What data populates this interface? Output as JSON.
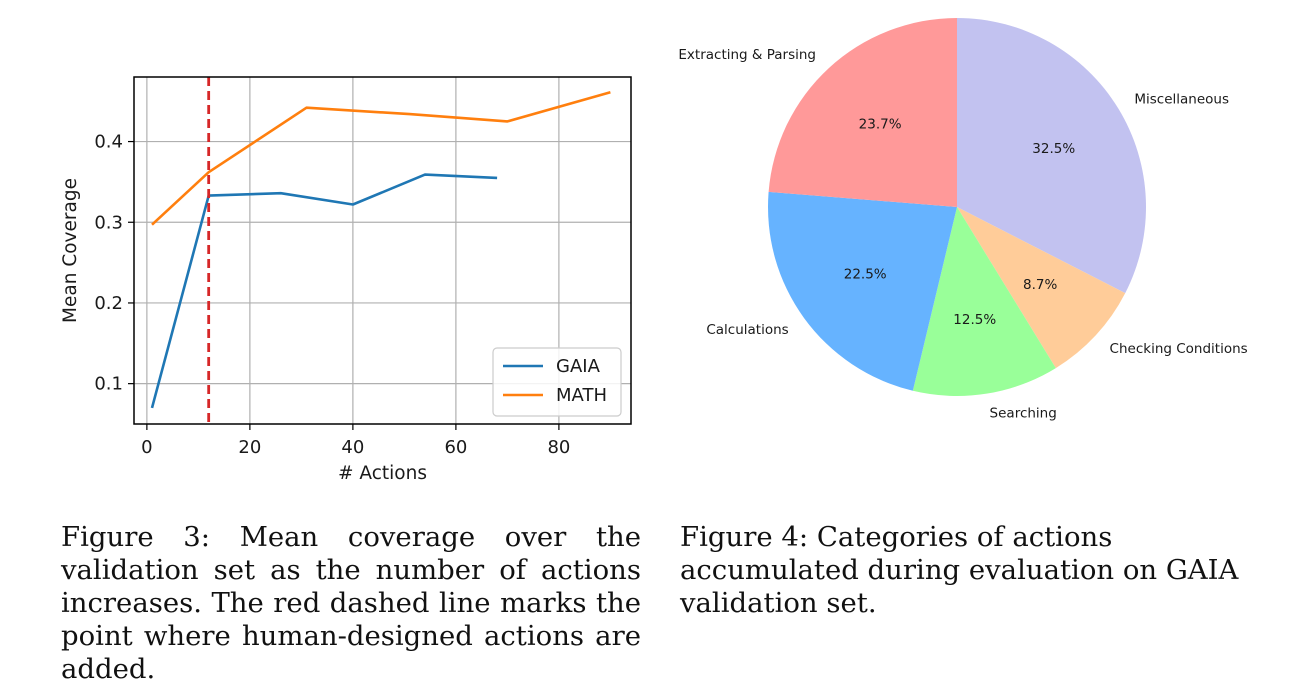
{
  "chart_data": [
    {
      "type": "line",
      "xlabel": "# Actions",
      "ylabel": "Mean Coverage",
      "xlim": [
        -2.5,
        94
      ],
      "ylim": [
        0.05,
        0.48
      ],
      "xticks": [
        0,
        20,
        40,
        60,
        80
      ],
      "xtick_labels": [
        "0",
        "20",
        "40",
        "60",
        "80"
      ],
      "yticks": [
        0.1,
        0.2,
        0.3,
        0.4
      ],
      "ytick_labels": [
        "0.1",
        "0.2",
        "0.3",
        "0.4"
      ],
      "grid": true,
      "legend_position": "lower-right",
      "vline": {
        "x": 12,
        "color": "#d62728",
        "style": "dashed"
      },
      "series": [
        {
          "name": "GAIA",
          "color": "#1f77b4",
          "x": [
            1,
            12,
            26,
            40,
            54,
            68
          ],
          "y": [
            0.07,
            0.333,
            0.336,
            0.322,
            0.359,
            0.355
          ]
        },
        {
          "name": "MATH",
          "color": "#ff7f0e",
          "x": [
            1,
            12,
            31,
            51,
            70,
            90
          ],
          "y": [
            0.297,
            0.362,
            0.442,
            0.434,
            0.425,
            0.461
          ]
        }
      ]
    },
    {
      "type": "pie",
      "start_angle_deg": 90,
      "direction": "clockwise",
      "slices": [
        {
          "label": "Miscellaneous",
          "value": 32.5,
          "pct_label": "32.5%",
          "color": "#c2c2f0"
        },
        {
          "label": "Checking Conditions",
          "value": 8.7,
          "pct_label": "8.7%",
          "color": "#ffcc99"
        },
        {
          "label": "Searching",
          "value": 12.5,
          "pct_label": "12.5%",
          "color": "#99ff99"
        },
        {
          "label": "Calculations",
          "value": 22.5,
          "pct_label": "22.5%",
          "color": "#66b3ff"
        },
        {
          "label": "Extracting & Parsing",
          "value": 23.7,
          "pct_label": "23.7%",
          "color": "#ff9999"
        }
      ]
    }
  ],
  "captions": {
    "fig3": "Figure 3: Mean coverage over the validation set as the number of actions increases. The red dashed line marks the point where human-designed actions are added.",
    "fig4": "Figure 4: Categories of actions accumulated during evaluation on GAIA validation set."
  }
}
